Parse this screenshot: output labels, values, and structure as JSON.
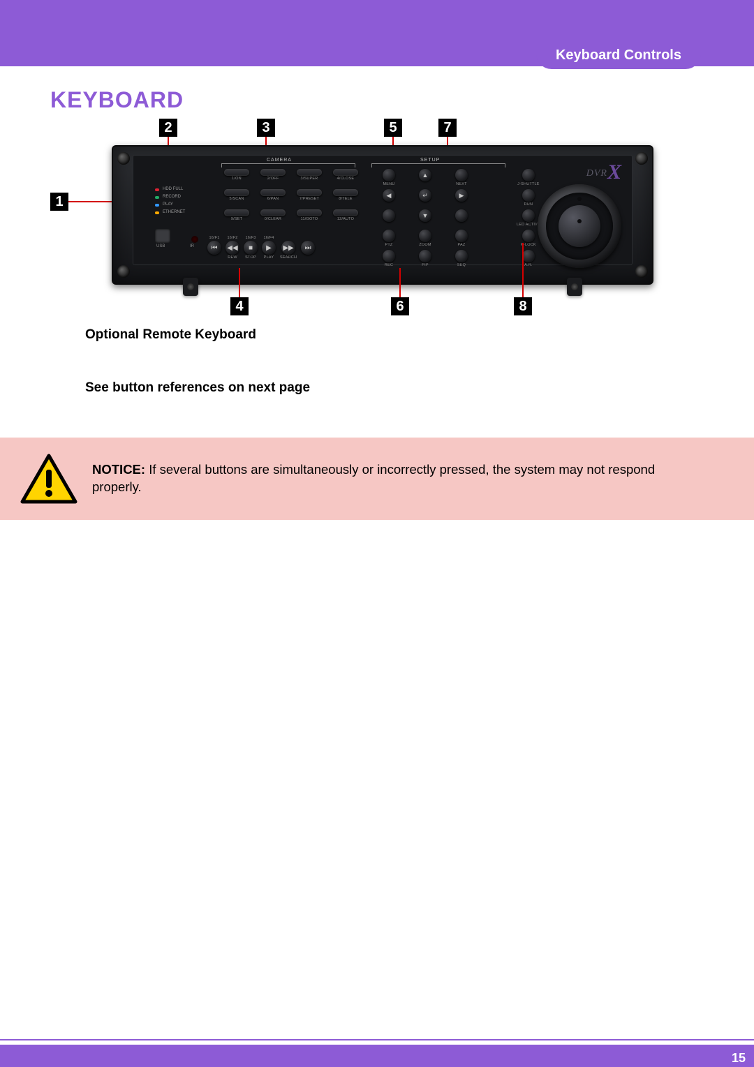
{
  "colors": {
    "brand_purple": "#8d5bd6",
    "callout_red": "#d40000",
    "notice_bg": "#f6c7c4",
    "warn_border": "#000000",
    "warn_fill": "#ffd400"
  },
  "header_tab": "Keyboard Controls",
  "heading": "KEYBOARD",
  "caption": "Optional Remote Keyboard",
  "subcaption": "See button references on next page",
  "page_number": "15",
  "notice": {
    "label": "NOTICE:",
    "text": " If several buttons are simultaneously or incorrectly pressed, the system may not respond properly."
  },
  "device": {
    "logo": {
      "prefix": "DVR",
      "suffix": "X"
    },
    "leds": [
      {
        "color": "#d23",
        "label": "HDD FULL"
      },
      {
        "color": "#2a6",
        "label": "RECORD"
      },
      {
        "color": "#39f",
        "label": "PLAY"
      },
      {
        "color": "#fa0",
        "label": "ETHERNET"
      }
    ],
    "usb_label": "USB",
    "ir_label": "IR",
    "sections": {
      "camera": "CAMERA",
      "setup": "SETUP"
    },
    "camera_buttons": [
      "1/ON",
      "2/OFF",
      "3/SUPER",
      "4/CLOSE",
      "5/SCAN",
      "6/PAN",
      "7/PRESET",
      "8/TELE",
      "9/SET",
      "0/CLEAR",
      "11/GOTO",
      "12/AUTO"
    ],
    "playback": {
      "top_row": [
        "16/F1",
        "16/F2",
        "16/F3",
        "16/F4"
      ],
      "buttons": [
        {
          "sym": "⏮",
          "label": ""
        },
        {
          "sym": "◀◀",
          "label": "REW"
        },
        {
          "sym": "■",
          "label": "STOP"
        },
        {
          "sym": "▶",
          "label": "PLAY"
        },
        {
          "sym": "▶▶",
          "label": "SEARCH"
        },
        {
          "sym": "⏭",
          "label": ""
        }
      ]
    },
    "setup_buttons": [
      "MENU",
      "▲",
      "NEXT",
      "J-SHUTTLE",
      "◀",
      "↵",
      "▶",
      "RUN",
      "",
      "▼",
      "",
      "LED ACTIVE",
      "PTZ",
      "ZOOM",
      "PAZ",
      "K-LOCK",
      "REC",
      "PIP",
      "SEQ",
      "A.R."
    ]
  },
  "callouts": {
    "1": "1",
    "2": "2",
    "3": "3",
    "4": "4",
    "5": "5",
    "6": "6",
    "7": "7",
    "8": "8"
  }
}
